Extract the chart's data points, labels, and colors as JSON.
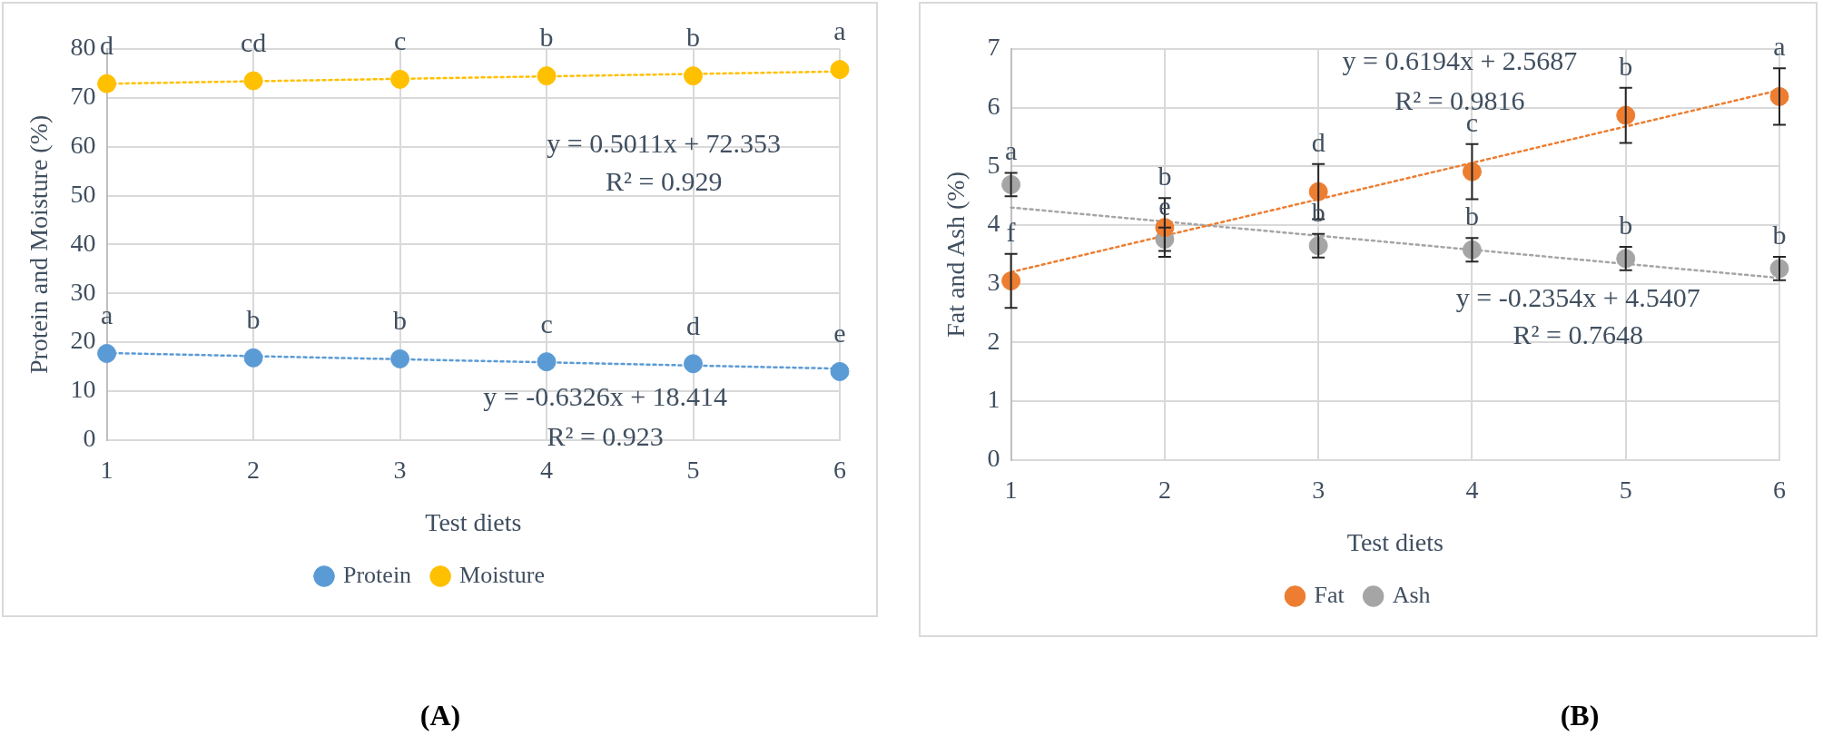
{
  "chart_data": [
    {
      "type": "scatter",
      "title": "(A)",
      "xlabel": "Test diets",
      "ylabel": "Protein and Moisture (%)",
      "xlim": [
        1,
        6
      ],
      "xticks": [
        1,
        2,
        3,
        4,
        5,
        6
      ],
      "ylim": [
        0,
        80
      ],
      "yticks": [
        0,
        10,
        20,
        30,
        40,
        50,
        60,
        70,
        80
      ],
      "grid": true,
      "legend": "bottom",
      "series": [
        {
          "name": "Protein",
          "type": "scatter",
          "marker": "circle",
          "color": "#5b9bd5",
          "x": [
            1,
            2,
            3,
            4,
            5,
            6
          ],
          "values": [
            17.7,
            16.8,
            16.6,
            16.0,
            15.6,
            14.0
          ],
          "value_labels": [
            "a",
            "b",
            "b",
            "c",
            "d",
            "e"
          ]
        },
        {
          "name": "Moisture",
          "type": "scatter",
          "marker": "circle",
          "color": "#ffc000",
          "x": [
            1,
            2,
            3,
            4,
            5,
            6
          ],
          "values": [
            72.9,
            73.5,
            73.8,
            74.5,
            74.5,
            75.8
          ],
          "value_labels": [
            "d",
            "cd",
            "c",
            "b",
            "b",
            "a"
          ]
        },
        {
          "type": "line",
          "marker": "none",
          "color": "#5b9bd5",
          "line_style": "dotted",
          "x": [
            1,
            6
          ],
          "values": [
            17.8,
            14.6
          ]
        },
        {
          "type": "line",
          "marker": "none",
          "color": "#ffc000",
          "line_style": "dotted",
          "x": [
            1,
            6
          ],
          "values": [
            72.9,
            75.4
          ]
        }
      ],
      "annotations": [
        "y = 0.5011x + 72.353",
        "R² = 0.929",
        "y = -0.6326x + 18.414",
        "R² = 0.923"
      ]
    },
    {
      "type": "scatter",
      "title": "(B)",
      "xlabel": "Test diets",
      "ylabel": "Fat and Ash (%)",
      "xlim": [
        1,
        6
      ],
      "xticks": [
        1,
        2,
        3,
        4,
        5,
        6
      ],
      "ylim": [
        0,
        7
      ],
      "yticks": [
        0,
        1,
        2,
        3,
        4,
        5,
        6,
        7
      ],
      "grid": true,
      "legend": "bottom",
      "series": [
        {
          "name": "Fat",
          "type": "scatter",
          "marker": "circle",
          "color": "#ed7d31",
          "x": [
            1,
            2,
            3,
            4,
            5,
            6
          ],
          "values": [
            3.05,
            3.96,
            4.57,
            4.91,
            5.87,
            6.19
          ],
          "errors": [
            0.46,
            0.5,
            0.47,
            0.47,
            0.47,
            0.48
          ],
          "value_labels": [
            "f",
            "b",
            "d",
            "c",
            "b",
            "a"
          ]
        },
        {
          "name": "Ash",
          "type": "scatter",
          "marker": "circle",
          "color": "#a5a5a5",
          "x": [
            1,
            2,
            3,
            4,
            5,
            6
          ],
          "values": [
            4.69,
            3.76,
            3.65,
            3.58,
            3.43,
            3.26
          ],
          "errors": [
            0.2,
            0.2,
            0.2,
            0.2,
            0.2,
            0.2
          ],
          "value_labels": [
            "a",
            "e",
            "b",
            "b",
            "b",
            "b"
          ]
        },
        {
          "type": "line",
          "marker": "none",
          "color": "#ed7d31",
          "line_style": "dotted",
          "x": [
            1,
            6
          ],
          "values": [
            3.2,
            6.3
          ]
        },
        {
          "type": "line",
          "marker": "none",
          "color": "#a5a5a5",
          "line_style": "dotted",
          "x": [
            1,
            6
          ],
          "values": [
            4.3,
            3.1
          ]
        }
      ],
      "annotations": [
        "y = 0.6194x + 2.5687",
        "R² = 0.9816",
        "y = -0.2354x + 4.5407",
        "R² = 0.7648"
      ]
    }
  ]
}
